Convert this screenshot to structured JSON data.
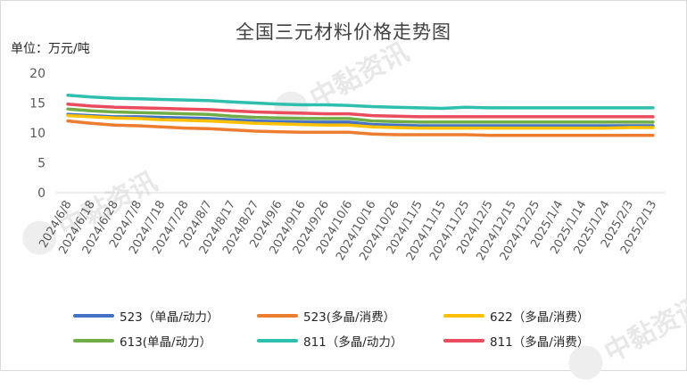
{
  "chart_data": {
    "type": "line",
    "title": "全国三元材料价格走势图",
    "ylabel": "单位：万元/吨",
    "ylim": [
      0,
      20
    ],
    "yticks": [
      0,
      5,
      10,
      15,
      20
    ],
    "grid": false,
    "legend_position": "bottom",
    "x": [
      "2024/6/8",
      "2024/6/18",
      "2024/6/28",
      "2024/7/8",
      "2024/7/18",
      "2024/7/28",
      "2024/8/7",
      "2024/8/17",
      "2024/8/27",
      "2024/9/6",
      "2024/9/16",
      "2024/9/26",
      "2024/10/6",
      "2024/10/16",
      "2024/10/26",
      "2024/11/5",
      "2024/11/15",
      "2024/11/25",
      "2024/12/5",
      "2024/12/15",
      "2024/12/25",
      "2025/1/4",
      "2025/1/14",
      "2025/1/24",
      "2025/2/3",
      "2025/2/13"
    ],
    "series": [
      {
        "name": "523（单晶/动力）",
        "color": "#4472c4",
        "values": [
          13.1,
          12.9,
          12.7,
          12.7,
          12.6,
          12.5,
          12.4,
          12.2,
          12.0,
          11.9,
          11.8,
          11.8,
          11.8,
          11.4,
          11.3,
          11.2,
          11.2,
          11.2,
          11.2,
          11.2,
          11.2,
          11.2,
          11.2,
          11.2,
          11.2,
          11.2
        ]
      },
      {
        "name": "523(多晶/消费）",
        "color": "#ed7d31",
        "values": [
          12.0,
          11.6,
          11.3,
          11.2,
          11.0,
          10.8,
          10.7,
          10.5,
          10.3,
          10.2,
          10.1,
          10.1,
          10.1,
          9.8,
          9.7,
          9.7,
          9.7,
          9.7,
          9.6,
          9.6,
          9.6,
          9.6,
          9.6,
          9.6,
          9.6,
          9.6
        ]
      },
      {
        "name": "622（多晶/消费）",
        "color": "#ffc000",
        "values": [
          12.9,
          12.7,
          12.5,
          12.4,
          12.2,
          12.1,
          12.0,
          11.8,
          11.6,
          11.5,
          11.4,
          11.3,
          11.3,
          11.0,
          10.9,
          10.8,
          10.8,
          10.8,
          10.8,
          10.8,
          10.8,
          10.8,
          10.8,
          10.8,
          10.9,
          10.9
        ]
      },
      {
        "name": "613(单晶/动力）",
        "color": "#70ad47",
        "values": [
          14.0,
          13.7,
          13.5,
          13.4,
          13.3,
          13.2,
          13.1,
          12.8,
          12.6,
          12.5,
          12.4,
          12.4,
          12.4,
          12.0,
          11.9,
          11.8,
          11.8,
          11.8,
          11.8,
          11.8,
          11.8,
          11.8,
          11.8,
          11.8,
          11.8,
          11.8
        ]
      },
      {
        "name": "811（多晶/动力）",
        "color": "#2ebfad",
        "values": [
          16.3,
          16.0,
          15.8,
          15.7,
          15.6,
          15.5,
          15.4,
          15.2,
          15.0,
          14.8,
          14.7,
          14.7,
          14.6,
          14.4,
          14.3,
          14.2,
          14.1,
          14.3,
          14.2,
          14.2,
          14.2,
          14.2,
          14.2,
          14.2,
          14.2,
          14.2
        ]
      },
      {
        "name": "811（多晶/消费）",
        "color": "#e84c5d",
        "values": [
          14.8,
          14.5,
          14.3,
          14.2,
          14.1,
          14.0,
          13.9,
          13.7,
          13.5,
          13.4,
          13.3,
          13.2,
          13.2,
          12.9,
          12.8,
          12.7,
          12.7,
          12.7,
          12.7,
          12.7,
          12.7,
          12.7,
          12.7,
          12.7,
          12.7,
          12.7
        ]
      }
    ]
  },
  "watermark": {
    "text": "中黏资讯",
    "icon": "brand-logo-icon"
  }
}
